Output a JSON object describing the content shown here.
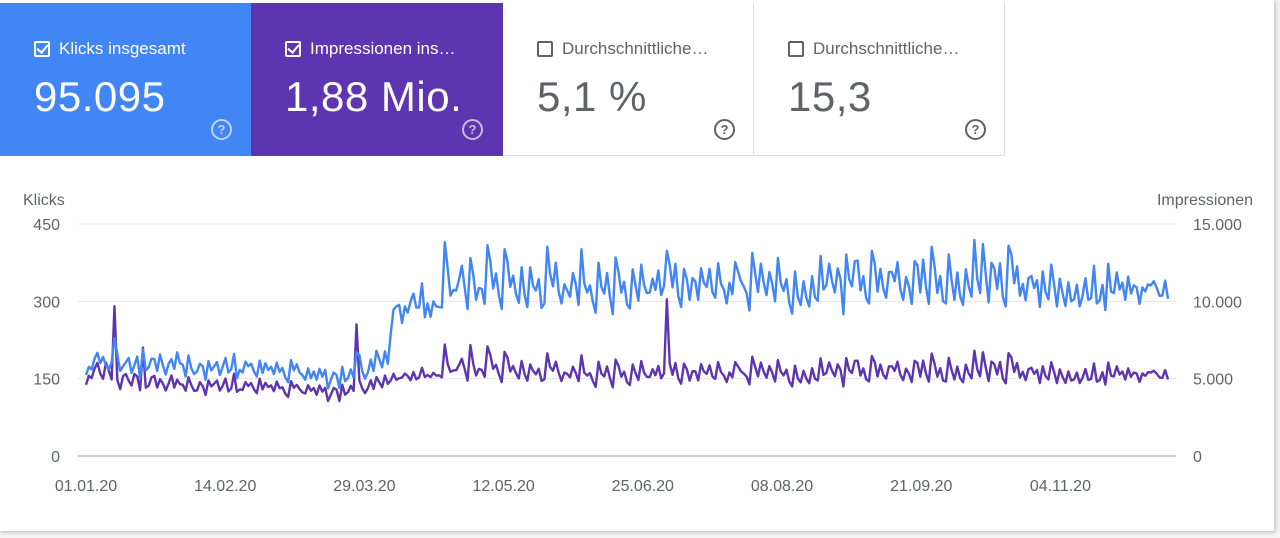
{
  "colors": {
    "clicks": "#4285f4",
    "impressions": "#5e35b1"
  },
  "cards": [
    {
      "label": "Klicks insgesamt",
      "value": "95.095",
      "checked": true,
      "color": "#4285f4",
      "help_icon": "help-icon"
    },
    {
      "label": "Impressionen ins…",
      "value": "1,88 Mio.",
      "checked": true,
      "color": "#5e35b1",
      "help_icon": "help-icon"
    },
    {
      "label": "Durchschnittliche…",
      "value": "5,1 %",
      "checked": false,
      "color": "#ffffff",
      "help_icon": "help-icon"
    },
    {
      "label": "Durchschnittliche…",
      "value": "15,3",
      "checked": false,
      "color": "#ffffff",
      "help_icon": "help-icon"
    }
  ],
  "chart_data": {
    "type": "line",
    "ylabel_left": "Klicks",
    "ylabel_right": "Impressionen",
    "ylim_left": [
      0,
      450
    ],
    "ylim_right": [
      0,
      15000
    ],
    "yticks_left": [
      "450",
      "300",
      "150",
      "0"
    ],
    "yticks_right": [
      "15.000",
      "10.000",
      "5.000",
      "0"
    ],
    "x_range": [
      "01.01.20",
      "08.12.20"
    ],
    "xticks": [
      "01.01.20",
      "14.02.20",
      "29.03.20",
      "12.05.20",
      "25.06.20",
      "08.08.20",
      "21.09.20",
      "04.11.20"
    ],
    "grid": true,
    "series": [
      {
        "axis": "left",
        "color": "#4285f4",
        "values": [
          157,
          173,
          168,
          189,
          200,
          180,
          192,
          176,
          168,
          181,
          229,
          197,
          165,
          174,
          182,
          190,
          161,
          176,
          193,
          150,
          207,
          166,
          172,
          189,
          188,
          165,
          197,
          176,
          158,
          179,
          188,
          169,
          201,
          180,
          177,
          154,
          195,
          170,
          159,
          164,
          179,
          174,
          148,
          184,
          166,
          174,
          182,
          157,
          173,
          190,
          162,
          168,
          198,
          151,
          167,
          162,
          183,
          174,
          179,
          164,
          154,
          185,
          161,
          180,
          167,
          173,
          159,
          181,
          163,
          171,
          152,
          143,
          186,
          166,
          178,
          162,
          157,
          148,
          170,
          151,
          164,
          148,
          169,
          154,
          167,
          131,
          148,
          162,
          157,
          132,
          173,
          145,
          151,
          168,
          152,
          201,
          196,
          165,
          150,
          162,
          187,
          165,
          204,
          188,
          172,
          203,
          179,
          236,
          284,
          290,
          293,
          258,
          290,
          278,
          300,
          315,
          288,
          288,
          335,
          269,
          296,
          270,
          300,
          290,
          289,
          288,
          415,
          365,
          311,
          322,
          321,
          342,
          369,
          327,
          285,
          384,
          352,
          303,
          326,
          324,
          295,
          409,
          377,
          325,
          354,
          312,
          285,
          401,
          378,
          328,
          350,
          315,
          297,
          366,
          314,
          289,
          366,
          330,
          321,
          343,
          287,
          296,
          406,
          353,
          329,
          375,
          319,
          296,
          333,
          321,
          309,
          355,
          334,
          293,
          401,
          335,
          317,
          331,
          299,
          278,
          375,
          328,
          315,
          355,
          309,
          275,
          385,
          358,
          317,
          338,
          294,
          286,
          362,
          331,
          301,
          371,
          332,
          316,
          317,
          344,
          322,
          360,
          312,
          330,
          398,
          371,
          327,
          373,
          311,
          289,
          363,
          344,
          303,
          345,
          339,
          303,
          364,
          336,
          328,
          363,
          318,
          307,
          374,
          334,
          323,
          296,
          336,
          314,
          376,
          358,
          339,
          329,
          316,
          282,
          394,
          355,
          318,
          373,
          337,
          312,
          357,
          334,
          300,
          384,
          336,
          320,
          343,
          297,
          276,
          358,
          308,
          293,
          339,
          307,
          290,
          349,
          308,
          301,
          388,
          323,
          331,
          373,
          339,
          317,
          364,
          343,
          275,
          391,
          344,
          329,
          378,
          379,
          321,
          349,
          306,
          296,
          398,
          373,
          319,
          363,
          325,
          307,
          357,
          357,
          339,
          376,
          323,
          303,
          347,
          329,
          295,
          378,
          370,
          317,
          381,
          328,
          295,
          406,
          369,
          316,
          349,
          300,
          296,
          391,
          341,
          303,
          356,
          310,
          293,
          362,
          329,
          309,
          419,
          344,
          316,
          411,
          352,
          298,
          375,
          364,
          324,
          374,
          308,
          290,
          408,
          391,
          335,
          368,
          311,
          334,
          302,
          345,
          349,
          326,
          341,
          289,
          358,
          318,
          304,
          371,
          333,
          290,
          344,
          315,
          291,
          337,
          300,
          304,
          332,
          290,
          311,
          345,
          303,
          306,
          369,
          296,
          302,
          332,
          283,
          373,
          319,
          316,
          356,
          323,
          336,
          303,
          348,
          315,
          331,
          327,
          295,
          327,
          319,
          333,
          331,
          339,
          327,
          311,
          311,
          340,
          305
        ]
      },
      {
        "axis": "right",
        "color": "#5e35b1",
        "values": [
          4602,
          5187,
          5047,
          5649,
          6020,
          5331,
          4985,
          6036,
          5519,
          4948,
          9679,
          4919,
          4324,
          5162,
          5302,
          4863,
          4561,
          5302,
          5139,
          4248,
          7009,
          4418,
          4542,
          5079,
          5181,
          4424,
          4965,
          4694,
          4231,
          4675,
          5211,
          4423,
          4935,
          4648,
          4602,
          4217,
          5093,
          4575,
          4205,
          4240,
          4772,
          4516,
          3950,
          4887,
          4502,
          4675,
          4881,
          4226,
          4537,
          5014,
          4176,
          4361,
          5323,
          4147,
          4304,
          4274,
          4781,
          4527,
          4716,
          4306,
          4062,
          4998,
          4305,
          4729,
          4459,
          4567,
          4192,
          4814,
          4377,
          4439,
          4023,
          3817,
          4837,
          4414,
          4601,
          4326,
          4118,
          4041,
          4576,
          4214,
          4398,
          3961,
          4562,
          4164,
          4401,
          3558,
          3966,
          4401,
          4286,
          3554,
          4606,
          3962,
          4133,
          4539,
          4207,
          8506,
          4896,
          4381,
          4061,
          4383,
          4895,
          4332,
          5101,
          4769,
          4442,
          5205,
          4663,
          4866,
          5316,
          4922,
          5029,
          5081,
          5331,
          5174,
          4892,
          5433,
          4963,
          5087,
          5702,
          5105,
          5240,
          5096,
          5377,
          5192,
          5217,
          5084,
          7211,
          5967,
          5439,
          5531,
          5545,
          5881,
          6287,
          5617,
          4879,
          7176,
          5958,
          5206,
          5633,
          5561,
          5119,
          7088,
          6525,
          5644,
          5896,
          5284,
          4781,
          6733,
          6372,
          5461,
          5815,
          5354,
          5014,
          6144,
          5325,
          4871,
          5920,
          5509,
          5281,
          5638,
          4854,
          4963,
          6640,
          5750,
          5514,
          6092,
          5384,
          4852,
          5401,
          5312,
          5088,
          5770,
          5374,
          4841,
          6511,
          5389,
          5199,
          5352,
          4848,
          4468,
          6095,
          5335,
          5142,
          5794,
          5036,
          4440,
          6233,
          5832,
          5129,
          5453,
          4780,
          4590,
          5919,
          5367,
          4914,
          6138,
          5377,
          5122,
          5107,
          5608,
          5217,
          5814,
          5029,
          5335,
          10127,
          5977,
          5251,
          6012,
          5035,
          4671,
          5967,
          5612,
          4874,
          5480,
          5478,
          4887,
          5937,
          5468,
          5311,
          5862,
          5140,
          4985,
          6070,
          5435,
          5200,
          4785,
          5409,
          5082,
          6075,
          5786,
          5485,
          5326,
          5138,
          4631,
          6421,
          5773,
          5149,
          6041,
          5452,
          5060,
          5813,
          5384,
          4815,
          6204,
          5456,
          5209,
          5582,
          4821,
          4496,
          5843,
          5022,
          4760,
          5510,
          4997,
          4707,
          5677,
          5001,
          4884,
          6317,
          5244,
          5366,
          6048,
          5513,
          5150,
          5927,
          5565,
          4494,
          6334,
          5560,
          5366,
          6150,
          6163,
          5204,
          5667,
          4958,
          4826,
          6468,
          6069,
          5141,
          5913,
          5246,
          5004,
          5799,
          5798,
          5508,
          6100,
          5251,
          4902,
          5644,
          5331,
          4785,
          6154,
          6015,
          5128,
          6168,
          5330,
          4812,
          6621,
          5976,
          5129,
          5678,
          4882,
          4813,
          6347,
          5552,
          4944,
          5780,
          5033,
          4767,
          5903,
          5348,
          5022,
          6809,
          5614,
          5154,
          6711,
          5713,
          4848,
          6109,
          5937,
          5270,
          6081,
          5008,
          4707,
          6650,
          6366,
          5433,
          6010,
          5070,
          5442,
          4906,
          5614,
          5704,
          5308,
          5555,
          4715,
          5802,
          5164,
          4950,
          6066,
          5437,
          4714,
          5605,
          5108,
          4724,
          5468,
          4876,
          4951,
          5393,
          4717,
          5065,
          5626,
          4921,
          4977,
          5983,
          4806,
          4910,
          5417,
          4620,
          6043,
          5193,
          5144,
          5799,
          5263,
          5464,
          4937,
          5660,
          5120,
          5399,
          5323,
          4788,
          5337,
          5184,
          5417,
          5395,
          5512,
          5331,
          5078,
          5046,
          5552,
          4953
        ]
      }
    ]
  }
}
